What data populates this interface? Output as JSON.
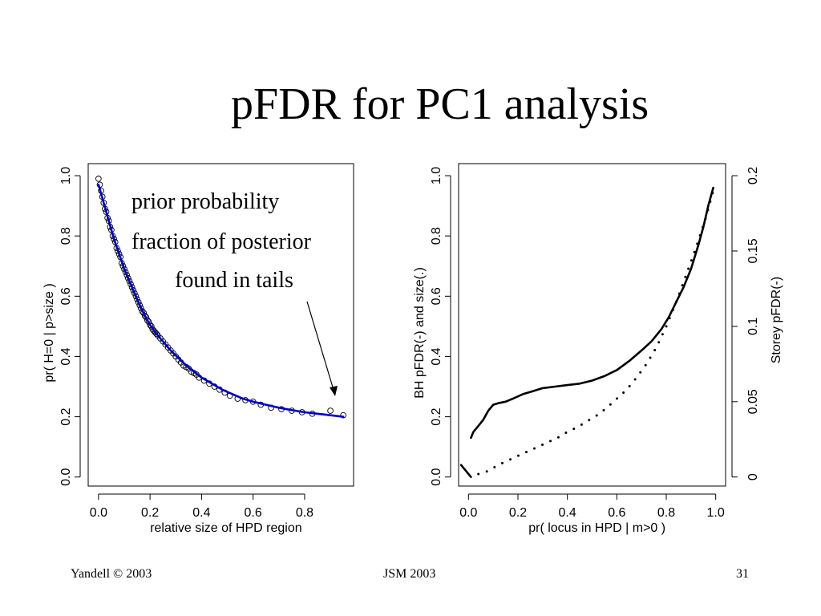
{
  "slide": {
    "title": "pFDR for PC1 analysis",
    "footer_left": "Yandell © 2003",
    "footer_center": "JSM 2003",
    "footer_right": "31"
  },
  "chart_data": [
    {
      "type": "line",
      "title": "",
      "xlabel": "relative size of HPD region",
      "ylabel": "pr( H=0 | p>size )",
      "xlim": [
        -0.04,
        0.99
      ],
      "ylim": [
        -0.03,
        1.04
      ],
      "x_ticks": [
        "0.0",
        "0.2",
        "0.4",
        "0.6",
        "0.8"
      ],
      "y_ticks": [
        "0.0",
        "0.2",
        "0.4",
        "0.6",
        "0.8",
        "1.0"
      ],
      "grid": false,
      "annotations": [
        "prior probability",
        "fraction of posterior",
        "found in tails"
      ],
      "series": [
        {
          "type": "scatter",
          "marker": "open-circle",
          "color": "#000000",
          "x": [
            0.0,
            0.005,
            0.01,
            0.015,
            0.02,
            0.025,
            0.03,
            0.035,
            0.04,
            0.045,
            0.05,
            0.055,
            0.06,
            0.065,
            0.07,
            0.075,
            0.08,
            0.085,
            0.09,
            0.095,
            0.1,
            0.105,
            0.11,
            0.115,
            0.12,
            0.125,
            0.13,
            0.135,
            0.14,
            0.145,
            0.15,
            0.155,
            0.16,
            0.165,
            0.17,
            0.175,
            0.18,
            0.185,
            0.19,
            0.195,
            0.2,
            0.205,
            0.21,
            0.215,
            0.22,
            0.225,
            0.23,
            0.24,
            0.25,
            0.26,
            0.27,
            0.28,
            0.29,
            0.3,
            0.31,
            0.32,
            0.33,
            0.34,
            0.35,
            0.36,
            0.37,
            0.38,
            0.39,
            0.41,
            0.43,
            0.45,
            0.47,
            0.49,
            0.51,
            0.54,
            0.57,
            0.6,
            0.63,
            0.67,
            0.71,
            0.75,
            0.79,
            0.83,
            0.9,
            0.95
          ],
          "y": [
            0.99,
            0.97,
            0.95,
            0.93,
            0.91,
            0.89,
            0.88,
            0.86,
            0.85,
            0.83,
            0.82,
            0.8,
            0.79,
            0.78,
            0.76,
            0.75,
            0.74,
            0.73,
            0.71,
            0.7,
            0.69,
            0.68,
            0.67,
            0.66,
            0.65,
            0.64,
            0.63,
            0.62,
            0.61,
            0.6,
            0.59,
            0.58,
            0.57,
            0.56,
            0.55,
            0.545,
            0.535,
            0.53,
            0.52,
            0.515,
            0.505,
            0.5,
            0.49,
            0.485,
            0.48,
            0.475,
            0.47,
            0.46,
            0.45,
            0.44,
            0.43,
            0.42,
            0.41,
            0.4,
            0.39,
            0.38,
            0.37,
            0.365,
            0.36,
            0.35,
            0.345,
            0.34,
            0.33,
            0.32,
            0.31,
            0.3,
            0.29,
            0.28,
            0.27,
            0.26,
            0.255,
            0.25,
            0.24,
            0.23,
            0.225,
            0.22,
            0.215,
            0.21,
            0.22,
            0.205
          ]
        },
        {
          "type": "line",
          "color": "#0000cc",
          "x": [
            0.0,
            0.02,
            0.04,
            0.06,
            0.08,
            0.1,
            0.12,
            0.14,
            0.16,
            0.18,
            0.2,
            0.22,
            0.25,
            0.28,
            0.31,
            0.34,
            0.37,
            0.4,
            0.44,
            0.48,
            0.52,
            0.56,
            0.6,
            0.65,
            0.7,
            0.75,
            0.8,
            0.85,
            0.9,
            0.95
          ],
          "y": [
            0.97,
            0.91,
            0.85,
            0.79,
            0.74,
            0.69,
            0.65,
            0.61,
            0.57,
            0.535,
            0.505,
            0.48,
            0.45,
            0.42,
            0.395,
            0.37,
            0.35,
            0.33,
            0.31,
            0.29,
            0.275,
            0.26,
            0.25,
            0.24,
            0.23,
            0.222,
            0.215,
            0.21,
            0.205,
            0.2
          ]
        }
      ]
    },
    {
      "type": "line",
      "title": "",
      "xlabel": "pr( locus in HPD | m>0 )",
      "ylabel": "BH pFDR(-) and size(.)",
      "ylabel_right": "Storey pFDR(-)",
      "xlim": [
        -0.04,
        1.04
      ],
      "ylim": [
        -0.03,
        1.04
      ],
      "ylim_right": [
        -0.006,
        0.208
      ],
      "x_ticks": [
        "0.0",
        "0.2",
        "0.4",
        "0.6",
        "0.8",
        "1.0"
      ],
      "y_ticks": [
        "0.0",
        "0.2",
        "0.4",
        "0.6",
        "0.8",
        "1.0"
      ],
      "y_ticks_right": [
        "0",
        "0.05",
        "0.1",
        "0.15",
        "0.2"
      ],
      "grid": false,
      "series": [
        {
          "name": "",
          "style": "solid",
          "color": "#000000",
          "x": [
            0.01,
            0.02,
            0.04,
            0.06,
            0.08,
            0.1,
            0.12,
            0.15,
            0.18,
            0.22,
            0.26,
            0.3,
            0.35,
            0.4,
            0.45,
            0.5,
            0.55,
            0.6,
            0.65,
            0.7,
            0.74,
            0.78,
            0.81,
            0.84,
            0.87,
            0.9,
            0.93,
            0.95,
            0.97,
            0.99
          ],
          "y": [
            0.13,
            0.15,
            0.17,
            0.19,
            0.22,
            0.24,
            0.245,
            0.25,
            0.26,
            0.275,
            0.285,
            0.295,
            0.3,
            0.305,
            0.31,
            0.32,
            0.335,
            0.355,
            0.385,
            0.42,
            0.45,
            0.49,
            0.53,
            0.58,
            0.63,
            0.69,
            0.77,
            0.83,
            0.9,
            0.96
          ]
        },
        {
          "name": "",
          "style": "dotted",
          "color": "#000000",
          "x": [
            0.04,
            0.08,
            0.12,
            0.16,
            0.2,
            0.24,
            0.28,
            0.32,
            0.36,
            0.4,
            0.44,
            0.48,
            0.52,
            0.56,
            0.6,
            0.64,
            0.68,
            0.72,
            0.76,
            0.8,
            0.84,
            0.88,
            0.92,
            0.96,
            0.99
          ],
          "y": [
            0.01,
            0.02,
            0.04,
            0.055,
            0.07,
            0.085,
            0.1,
            0.115,
            0.13,
            0.15,
            0.165,
            0.185,
            0.205,
            0.23,
            0.26,
            0.29,
            0.33,
            0.375,
            0.43,
            0.5,
            0.58,
            0.67,
            0.76,
            0.86,
            0.95
          ]
        },
        {
          "name": "",
          "style": "solid",
          "color": "#000000",
          "x": [
            -0.03,
            0.01
          ],
          "y": [
            0.04,
            0.0
          ]
        }
      ]
    }
  ]
}
